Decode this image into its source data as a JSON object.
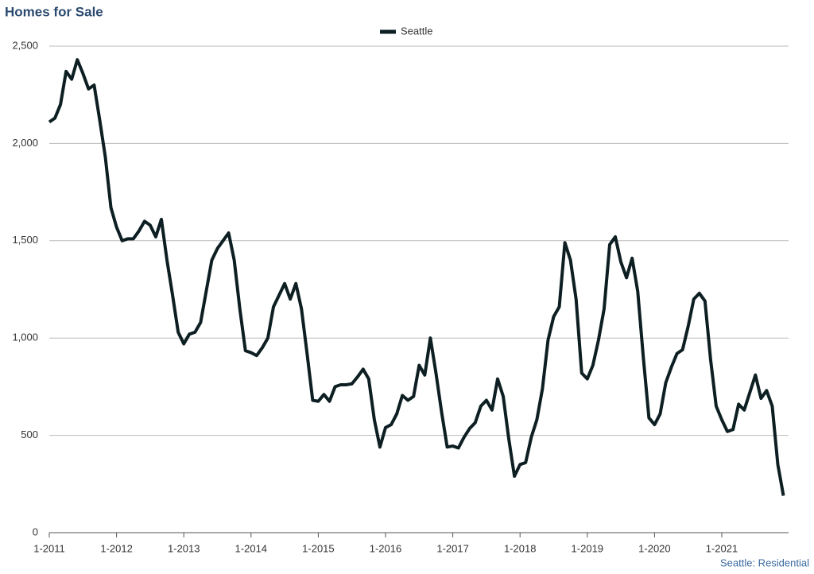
{
  "chart_data": {
    "type": "line",
    "title": "Homes for Sale",
    "annotation": "Seattle: Residential",
    "categories": [
      "1-2011",
      null,
      null,
      null,
      null,
      null,
      null,
      null,
      null,
      null,
      null,
      null,
      "1-2012",
      null,
      null,
      null,
      null,
      null,
      null,
      null,
      null,
      null,
      null,
      null,
      "1-2013",
      null,
      null,
      null,
      null,
      null,
      null,
      null,
      null,
      null,
      null,
      null,
      "1-2014",
      null,
      null,
      null,
      null,
      null,
      null,
      null,
      null,
      null,
      null,
      null,
      "1-2015",
      null,
      null,
      null,
      null,
      null,
      null,
      null,
      null,
      null,
      null,
      null,
      "1-2016",
      null,
      null,
      null,
      null,
      null,
      null,
      null,
      null,
      null,
      null,
      null,
      "1-2017",
      null,
      null,
      null,
      null,
      null,
      null,
      null,
      null,
      null,
      null,
      null,
      "1-2018",
      null,
      null,
      null,
      null,
      null,
      null,
      null,
      null,
      null,
      null,
      null,
      "1-2019",
      null,
      null,
      null,
      null,
      null,
      null,
      null,
      null,
      null,
      null,
      null,
      "1-2020",
      null,
      null,
      null,
      null,
      null,
      null,
      null,
      null,
      null,
      null,
      null,
      "1-2021",
      null,
      null,
      null,
      null,
      null,
      null,
      null,
      null,
      null,
      null,
      null
    ],
    "series": [
      {
        "name": "Seattle",
        "color": "#0d1f22",
        "values": [
          2110,
          2130,
          2200,
          2370,
          2330,
          2430,
          2360,
          2280,
          2300,
          2120,
          1930,
          1670,
          1570,
          1500,
          1510,
          1510,
          1550,
          1600,
          1580,
          1520,
          1610,
          1400,
          1220,
          1030,
          970,
          1020,
          1030,
          1080,
          1240,
          1400,
          1460,
          1500,
          1540,
          1400,
          1150,
          935,
          925,
          910,
          950,
          1000,
          1160,
          1220,
          1280,
          1200,
          1280,
          1150,
          920,
          680,
          675,
          710,
          675,
          750,
          760,
          760,
          765,
          800,
          840,
          790,
          580,
          440,
          540,
          555,
          610,
          705,
          680,
          700,
          860,
          810,
          1000,
          820,
          620,
          440,
          445,
          435,
          490,
          535,
          565,
          650,
          680,
          630,
          790,
          700,
          480,
          290,
          350,
          360,
          490,
          580,
          740,
          990,
          1110,
          1160,
          1490,
          1400,
          1200,
          820,
          790,
          860,
          990,
          1150,
          1480,
          1520,
          1390,
          1310,
          1410,
          1240,
          900,
          590,
          555,
          610,
          770,
          850,
          920,
          940,
          1060,
          1200,
          1230,
          1190,
          890,
          650,
          580,
          520,
          530,
          660,
          630,
          720,
          810,
          690,
          730,
          650,
          350,
          190
        ]
      }
    ],
    "ylim": [
      0,
      2500
    ],
    "yticks": [
      0,
      500,
      {
        "value": 1000,
        "label": "1,000"
      },
      {
        "value": 1500,
        "label": "1,500"
      },
      {
        "value": 2000,
        "label": "2,000"
      },
      {
        "value": 2500,
        "label": "2,500"
      }
    ],
    "grid": true,
    "legend": "top"
  }
}
